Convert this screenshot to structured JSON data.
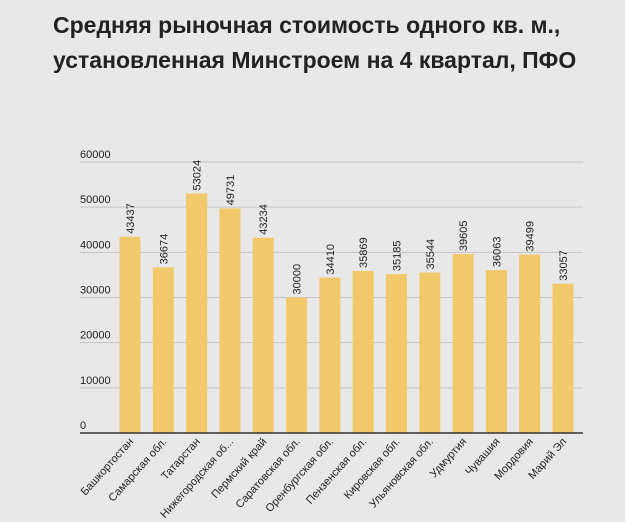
{
  "chart_data": {
    "type": "bar",
    "title": "Средняя рыночная стоимость одного кв. м., установленная Минстроем на 4 квартал, ПФО",
    "categories": [
      "Башкортостан",
      "Самарская обл.",
      "Татарстан",
      "Нижегородская об...",
      "Пермский край",
      "Саратовская обл.",
      "Оренбургская обл.",
      "Пензенская обл.",
      "Кировская обл.",
      "Ульяновская обл.",
      "Удмуртия",
      "Чувашия",
      "Мордовия",
      "Марий Эл"
    ],
    "values": [
      43437,
      36674,
      53024,
      49731,
      43234,
      30000,
      34410,
      35869,
      35185,
      35544,
      39605,
      36063,
      39499,
      33057
    ],
    "ylim": [
      0,
      60000
    ],
    "yticks": [
      "0",
      "10000",
      "20000",
      "30000",
      "40000",
      "50000",
      "60000"
    ],
    "xlabel": "",
    "ylabel": "",
    "grid": true,
    "bar_color": "#f2c96a",
    "grid_color": "#c4c4c4",
    "axis_color": "#333333"
  }
}
